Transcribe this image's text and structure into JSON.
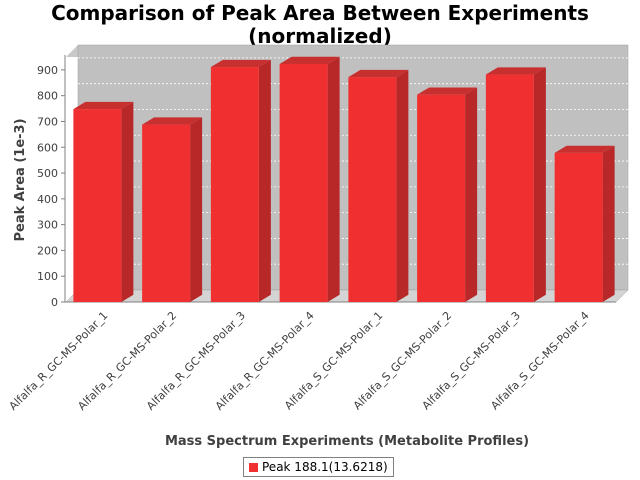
{
  "chart_data": {
    "type": "bar",
    "title_lines": [
      "Comparison of Peak Area Between Experiments",
      "(normalized)"
    ],
    "xlabel": "Mass Spectrum Experiments (Metabolite Profiles)",
    "ylabel": "Peak Area (1e-3)",
    "ylim": [
      0,
      950
    ],
    "yticks": [
      0,
      100,
      200,
      300,
      400,
      500,
      600,
      700,
      800,
      900
    ],
    "grid": true,
    "legend_position": "bottom",
    "categories": [
      "Alfalfa_R_GC-MS-Polar_1",
      "Alfalfa_R_GC-MS-Polar_2",
      "Alfalfa_R_GC-MS-Polar_3",
      "Alfalfa_R_GC-MS-Polar_4",
      "Alfalfa_S_GC-MS-Polar_1",
      "Alfalfa_S_GC-MS-Polar_2",
      "Alfalfa_S_GC-MS-Polar_3",
      "Alfalfa_S_GC-MS-Polar_4"
    ],
    "series": [
      {
        "name": "Peak 188.1(13.6218)",
        "color": "#f03030",
        "values": [
          748,
          688,
          911,
          923,
          872,
          804,
          882,
          578
        ]
      }
    ]
  }
}
